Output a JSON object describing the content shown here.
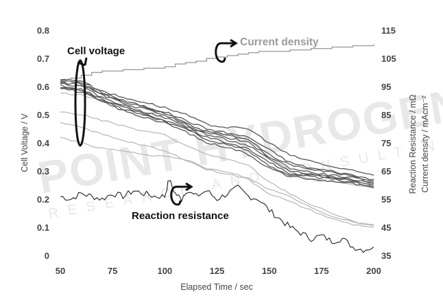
{
  "watermark": {
    "main": "POINT HYDROGEN",
    "sub": "RESEARCH AND CONSULTING"
  },
  "chart_data": {
    "type": "line",
    "xlabel": "Elapsed Time / sec",
    "ylabel_left": "Cell Voltage / V",
    "ylabel_right_1": "Reaction Resistance / mΩ",
    "ylabel_right_2": "Current density / mAcm⁻²",
    "xlim": [
      50,
      200
    ],
    "ylim_left": [
      0,
      0.8
    ],
    "ylim_right": [
      35,
      115
    ],
    "x_ticks": [
      "50",
      "75",
      "100",
      "125",
      "150",
      "175",
      "200"
    ],
    "y_left_ticks": [
      "0",
      "0.1",
      "0.2",
      "0.3",
      "0.4",
      "0.5",
      "0.6",
      "0.7",
      "0.8"
    ],
    "y_right_ticks": [
      "35",
      "45",
      "55",
      "65",
      "75",
      "85",
      "95",
      "105",
      "115"
    ],
    "grid": false,
    "annotations": {
      "cell_voltage": "Cell voltage",
      "current_density": "Current density",
      "reaction_resistance": "Reaction resistance"
    },
    "colors": {
      "cell_voltage_dark": "#555555",
      "cell_voltage_light": "#b4b4b4",
      "current_density": "#9e9e9e",
      "reaction_resistance": "#222222"
    },
    "current_density": {
      "axis": "right",
      "points": [
        [
          50,
          97
        ],
        [
          55,
          98
        ],
        [
          60,
          99
        ],
        [
          65,
          100
        ],
        [
          70,
          100.5
        ],
        [
          80,
          101
        ],
        [
          90,
          101.5
        ],
        [
          100,
          102
        ],
        [
          105,
          103
        ],
        [
          110,
          103.5
        ],
        [
          115,
          104
        ],
        [
          120,
          105
        ],
        [
          125,
          105.5
        ],
        [
          130,
          106
        ],
        [
          135,
          106.5
        ],
        [
          140,
          107
        ],
        [
          145,
          107.5
        ],
        [
          150,
          107.5
        ],
        [
          160,
          108
        ],
        [
          170,
          108.5
        ],
        [
          180,
          109
        ],
        [
          190,
          109.5
        ],
        [
          200,
          110
        ]
      ]
    },
    "cell_voltage_dark": {
      "axis": "left",
      "x": [
        50,
        60,
        70,
        80,
        90,
        100,
        110,
        120,
        130,
        140,
        150,
        160,
        170,
        180,
        190,
        200
      ],
      "series": [
        [
          0.625,
          0.62,
          0.58,
          0.55,
          0.53,
          0.51,
          0.48,
          0.45,
          0.435,
          0.42,
          0.375,
          0.33,
          0.31,
          0.3,
          0.285,
          0.27
        ],
        [
          0.62,
          0.61,
          0.575,
          0.545,
          0.525,
          0.505,
          0.47,
          0.44,
          0.43,
          0.41,
          0.36,
          0.32,
          0.305,
          0.295,
          0.28,
          0.265
        ],
        [
          0.615,
          0.605,
          0.57,
          0.54,
          0.52,
          0.5,
          0.465,
          0.435,
          0.42,
          0.4,
          0.35,
          0.31,
          0.295,
          0.285,
          0.275,
          0.26
        ],
        [
          0.61,
          0.6,
          0.56,
          0.535,
          0.51,
          0.49,
          0.46,
          0.43,
          0.41,
          0.39,
          0.34,
          0.3,
          0.29,
          0.28,
          0.27,
          0.255
        ],
        [
          0.605,
          0.59,
          0.555,
          0.53,
          0.505,
          0.48,
          0.455,
          0.42,
          0.4,
          0.38,
          0.33,
          0.29,
          0.285,
          0.275,
          0.265,
          0.25
        ],
        [
          0.6,
          0.585,
          0.55,
          0.52,
          0.5,
          0.475,
          0.45,
          0.41,
          0.395,
          0.37,
          0.32,
          0.285,
          0.28,
          0.27,
          0.26,
          0.245
        ],
        [
          0.595,
          0.58,
          0.545,
          0.515,
          0.49,
          0.47,
          0.44,
          0.4,
          0.385,
          0.36,
          0.31,
          0.28,
          0.27,
          0.265,
          0.255,
          0.24
        ],
        [
          0.625,
          0.615,
          0.585,
          0.56,
          0.545,
          0.525,
          0.5,
          0.465,
          0.455,
          0.45,
          0.4,
          0.355,
          0.335,
          0.315,
          0.3,
          0.285
        ]
      ]
    },
    "cell_voltage_light": {
      "axis": "left",
      "x": [
        50,
        60,
        70,
        80,
        90,
        100,
        110,
        120,
        130,
        140,
        150,
        160,
        170,
        180,
        190,
        200
      ],
      "series": [
        [
          0.575,
          0.57,
          0.55,
          0.53,
          0.51,
          0.49,
          0.465,
          0.44,
          0.43,
          0.41,
          0.35,
          0.3,
          0.27,
          0.26,
          0.25,
          0.24
        ],
        [
          0.51,
          0.5,
          0.48,
          0.46,
          0.44,
          0.43,
          0.39,
          0.36,
          0.34,
          0.32,
          0.26,
          0.22,
          0.18,
          0.15,
          0.12,
          0.11
        ],
        [
          0.47,
          0.455,
          0.43,
          0.41,
          0.39,
          0.37,
          0.34,
          0.305,
          0.29,
          0.27,
          0.22,
          0.19,
          0.16,
          0.13,
          0.11,
          0.1
        ],
        [
          0.42,
          0.4,
          0.38,
          0.37,
          0.36,
          0.35,
          0.34,
          0.31,
          0.295,
          0.275,
          0.235,
          0.21,
          0.17,
          0.14,
          0.12,
          0.105
        ]
      ]
    },
    "reaction_resistance": {
      "axis": "right",
      "x": [
        50,
        55,
        60,
        65,
        70,
        75,
        80,
        85,
        90,
        95,
        100,
        102,
        105,
        108,
        110,
        115,
        120,
        125,
        130,
        135,
        140,
        145,
        150,
        155,
        160,
        165,
        170,
        175,
        180,
        185,
        190,
        195,
        200
      ],
      "values": [
        56,
        55,
        57,
        56,
        55,
        57,
        56,
        58,
        57,
        56,
        56,
        62,
        57,
        55,
        58,
        56,
        58,
        55,
        57,
        59,
        56,
        55,
        51,
        48,
        45,
        43,
        41,
        42,
        40,
        41,
        38,
        37,
        38
      ]
    }
  }
}
